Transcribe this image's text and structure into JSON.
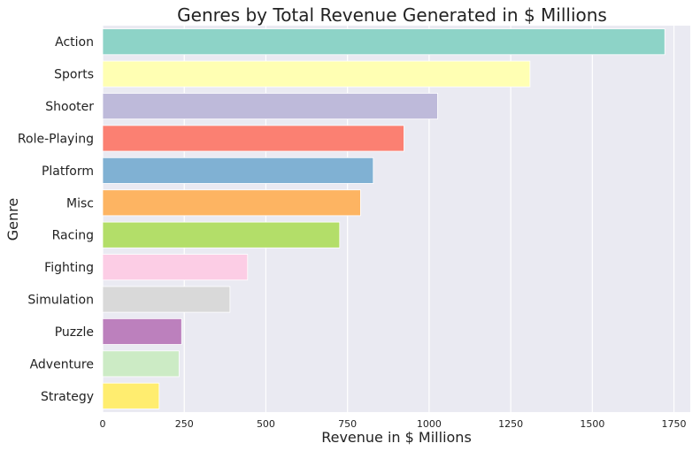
{
  "chart_data": {
    "type": "bar",
    "orientation": "horizontal",
    "title": "Genres by Total Revenue Generated in $ Millions",
    "xlabel": "Revenue in $ Millions",
    "ylabel": "Genre",
    "xlim": [
      0,
      1800
    ],
    "xticks": [
      0,
      250,
      500,
      750,
      1000,
      1250,
      1500,
      1750
    ],
    "grid": true,
    "categories": [
      "Action",
      "Sports",
      "Shooter",
      "Role-Playing",
      "Platform",
      "Misc",
      "Racing",
      "Fighting",
      "Simulation",
      "Puzzle",
      "Adventure",
      "Strategy"
    ],
    "values": [
      1722,
      1309,
      1026,
      923,
      829,
      790,
      726,
      444,
      390,
      242,
      234,
      173
    ],
    "colors": [
      "#8dd3c7",
      "#ffffb3",
      "#bebada",
      "#fb8072",
      "#80b1d3",
      "#fdb462",
      "#b3de69",
      "#fccde5",
      "#d9d9d9",
      "#bc80bd",
      "#ccebc5",
      "#ffed6f"
    ],
    "background": "#eaeaf2",
    "grid_color": "#ffffff"
  }
}
